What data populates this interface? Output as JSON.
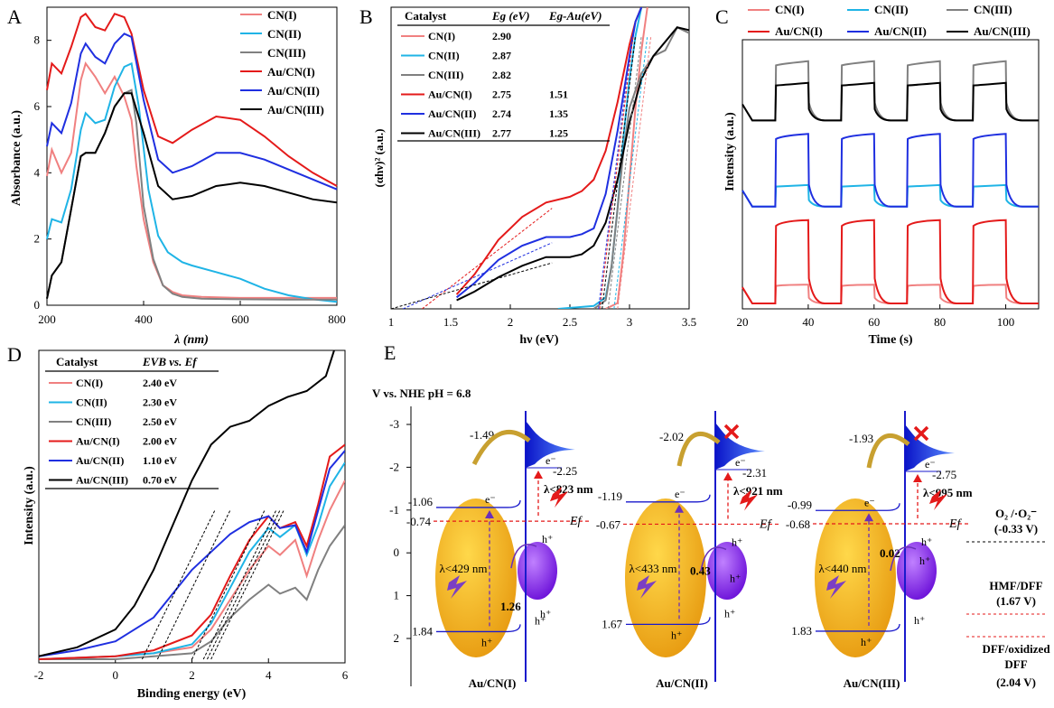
{
  "panel_letters": [
    "A",
    "B",
    "C",
    "D",
    "E"
  ],
  "chart_data": [
    {
      "panel": "A",
      "type": "line",
      "xlabel": "λ (nm)",
      "ylabel": "Absorbance (a.u.)",
      "xlim": [
        200,
        800
      ],
      "ylim": [
        0,
        9
      ],
      "xticks": [
        200,
        400,
        600,
        800
      ],
      "yticks": [
        0,
        2,
        4,
        6,
        8
      ],
      "legend_position": "top-right",
      "series": [
        {
          "name": "CN(I)",
          "color": "#f08080",
          "x": [
            200,
            210,
            230,
            250,
            270,
            280,
            300,
            320,
            340,
            360,
            375,
            385,
            400,
            420,
            440,
            460,
            480,
            520,
            600,
            700,
            800
          ],
          "y": [
            3.9,
            4.7,
            4.0,
            4.6,
            6.8,
            7.3,
            6.9,
            6.4,
            6.9,
            6.3,
            5.6,
            4.2,
            2.6,
            1.3,
            0.6,
            0.4,
            0.3,
            0.25,
            0.22,
            0.22,
            0.22
          ]
        },
        {
          "name": "CN(II)",
          "color": "#1fb4e6",
          "x": [
            200,
            210,
            230,
            250,
            270,
            280,
            300,
            320,
            340,
            360,
            375,
            390,
            410,
            430,
            450,
            480,
            500,
            550,
            600,
            650,
            700,
            750,
            800
          ],
          "y": [
            2.0,
            2.6,
            2.5,
            3.5,
            5.3,
            5.8,
            5.5,
            5.6,
            6.6,
            7.2,
            7.3,
            6.0,
            3.5,
            2.1,
            1.6,
            1.3,
            1.2,
            1.0,
            0.8,
            0.5,
            0.3,
            0.18,
            0.1
          ]
        },
        {
          "name": "CN(III)",
          "color": "#808080",
          "x": [
            200,
            210,
            230,
            250,
            270,
            280,
            300,
            320,
            340,
            360,
            375,
            385,
            400,
            420,
            440,
            460,
            480,
            520,
            600,
            700,
            800
          ],
          "y": [
            0.2,
            0.9,
            1.3,
            2.9,
            4.5,
            4.6,
            4.6,
            5.2,
            6.0,
            6.4,
            6.5,
            5.5,
            3.0,
            1.4,
            0.6,
            0.35,
            0.25,
            0.2,
            0.18,
            0.17,
            0.17
          ]
        },
        {
          "name": "Au/CN(I)",
          "color": "#e41a1a",
          "x": [
            200,
            210,
            230,
            250,
            270,
            280,
            300,
            320,
            340,
            360,
            375,
            400,
            430,
            460,
            500,
            550,
            600,
            650,
            700,
            750,
            800
          ],
          "y": [
            6.5,
            7.3,
            7.0,
            7.8,
            8.7,
            8.8,
            8.4,
            8.3,
            8.8,
            8.7,
            8.2,
            6.5,
            5.1,
            4.9,
            5.3,
            5.7,
            5.6,
            5.1,
            4.5,
            4.0,
            3.6
          ]
        },
        {
          "name": "Au/CN(II)",
          "color": "#1f2fe0",
          "x": [
            200,
            210,
            230,
            250,
            270,
            280,
            300,
            320,
            340,
            360,
            375,
            400,
            430,
            460,
            500,
            550,
            600,
            650,
            700,
            750,
            800
          ],
          "y": [
            4.8,
            5.5,
            5.2,
            6.1,
            7.6,
            7.9,
            7.5,
            7.3,
            7.9,
            8.2,
            8.1,
            6.2,
            4.4,
            4.0,
            4.2,
            4.6,
            4.6,
            4.4,
            4.1,
            3.8,
            3.5
          ]
        },
        {
          "name": "Au/CN(III)",
          "color": "#000000",
          "x": [
            200,
            210,
            230,
            250,
            270,
            280,
            300,
            320,
            340,
            360,
            375,
            400,
            430,
            460,
            500,
            550,
            600,
            650,
            700,
            750,
            800
          ],
          "y": [
            0.2,
            0.9,
            1.3,
            2.9,
            4.5,
            4.6,
            4.6,
            5.2,
            6.0,
            6.4,
            6.4,
            5.2,
            3.6,
            3.2,
            3.3,
            3.6,
            3.7,
            3.6,
            3.4,
            3.2,
            3.1
          ]
        }
      ]
    },
    {
      "panel": "B",
      "type": "line",
      "xlabel": "hν (eV)",
      "ylabel": "(αhν)²  (a.u.)",
      "xlim": [
        1,
        3.5
      ],
      "xticks": [
        1,
        1.5,
        2,
        2.5,
        3,
        3.5
      ],
      "table": {
        "headers": [
          "Catalyst",
          "Eg (eV)",
          "Eg-Au(eV)"
        ],
        "rows": [
          [
            "CN(I)",
            "2.90",
            ""
          ],
          [
            "CN(II)",
            "2.87",
            ""
          ],
          [
            "CN(III)",
            "2.82",
            ""
          ],
          [
            "Au/CN(I)",
            "2.75",
            "1.51"
          ],
          [
            "Au/CN(II)",
            "2.74",
            "1.35"
          ],
          [
            "Au/CN(III)",
            "2.77",
            "1.25"
          ]
        ]
      },
      "series": [
        {
          "name": "CN(I)",
          "color": "#f08080",
          "x": [
            2.8,
            2.9,
            2.95,
            3.0,
            3.05,
            3.1,
            3.15
          ],
          "y": [
            0,
            0.02,
            0.2,
            0.45,
            0.7,
            0.9,
            1.05
          ]
        },
        {
          "name": "CN(II)",
          "color": "#1fb4e6",
          "x": [
            2.4,
            2.7,
            2.8,
            2.85,
            2.9,
            2.95,
            3.0,
            3.05,
            3.1
          ],
          "y": [
            0,
            0.01,
            0.04,
            0.15,
            0.35,
            0.6,
            0.8,
            0.95,
            1.05
          ]
        },
        {
          "name": "CN(III)",
          "color": "#808080",
          "x": [
            2.7,
            2.8,
            2.85,
            2.9,
            2.95,
            3.0,
            3.1,
            3.2,
            3.3,
            3.4,
            3.5
          ],
          "y": [
            0,
            0.03,
            0.15,
            0.35,
            0.55,
            0.7,
            0.82,
            0.88,
            0.9,
            0.98,
            0.96
          ]
        },
        {
          "name": "Au/CN(I)",
          "color": "#e41a1a",
          "x": [
            1.55,
            1.7,
            1.9,
            2.1,
            2.3,
            2.5,
            2.6,
            2.7,
            2.8,
            2.9,
            3.0,
            3.05,
            3.1
          ],
          "y": [
            0.05,
            0.12,
            0.24,
            0.32,
            0.37,
            0.39,
            0.41,
            0.45,
            0.55,
            0.72,
            0.92,
            1.0,
            1.05
          ]
        },
        {
          "name": "Au/CN(II)",
          "color": "#1f2fe0",
          "x": [
            1.55,
            1.7,
            1.9,
            2.1,
            2.3,
            2.5,
            2.6,
            2.7,
            2.8,
            2.9,
            3.0,
            3.05,
            3.1
          ],
          "y": [
            0.04,
            0.09,
            0.17,
            0.22,
            0.25,
            0.25,
            0.26,
            0.28,
            0.4,
            0.62,
            0.88,
            1.0,
            1.05
          ]
        },
        {
          "name": "Au/CN(III)",
          "color": "#000000",
          "x": [
            1.55,
            1.7,
            1.9,
            2.1,
            2.3,
            2.5,
            2.6,
            2.7,
            2.8,
            2.9,
            3.0,
            3.1,
            3.2,
            3.3,
            3.4,
            3.5
          ],
          "y": [
            0.03,
            0.06,
            0.11,
            0.15,
            0.18,
            0.18,
            0.19,
            0.22,
            0.3,
            0.45,
            0.65,
            0.8,
            0.88,
            0.93,
            0.98,
            0.97
          ]
        }
      ]
    },
    {
      "panel": "C",
      "type": "line",
      "xlabel": "Time (s)",
      "ylabel": "Intensity (a.u.)",
      "xlim": [
        20,
        110
      ],
      "xticks": [
        20,
        40,
        60,
        80,
        100
      ],
      "legend_position": "top",
      "on_intervals": [
        [
          30,
          40
        ],
        [
          50,
          60
        ],
        [
          70,
          80
        ],
        [
          90,
          100
        ]
      ],
      "series": [
        {
          "name": "CN(I)",
          "color": "#f08080",
          "base": 0.02,
          "level": 0.09
        },
        {
          "name": "CN(II)",
          "color": "#1fb4e6",
          "base": 0.38,
          "level": 0.46
        },
        {
          "name": "CN(III)",
          "color": "#808080",
          "base": 0.7,
          "level": 0.92
        },
        {
          "name": "Au/CN(I)",
          "color": "#e41a1a",
          "base": 0.02,
          "level": 0.33
        },
        {
          "name": "Au/CN(II)",
          "color": "#1f2fe0",
          "base": 0.38,
          "level": 0.65
        },
        {
          "name": "Au/CN(III)",
          "color": "#000000",
          "base": 0.7,
          "level": 0.84
        }
      ]
    },
    {
      "panel": "D",
      "type": "line",
      "xlabel": "Binding energy (eV)",
      "ylabel": "Intensity (a.u.)",
      "xlim": [
        -2,
        6
      ],
      "xticks": [
        -2,
        0,
        2,
        4,
        6
      ],
      "table": {
        "headers": [
          "Catalyst",
          "EVB vs. Ef"
        ],
        "rows": [
          [
            "CN(I)",
            "2.40 eV"
          ],
          [
            "CN(II)",
            "2.30 eV"
          ],
          [
            "CN(III)",
            "2.50 eV"
          ],
          [
            "Au/CN(I)",
            "2.00 eV"
          ],
          [
            "Au/CN(II)",
            "1.10 eV"
          ],
          [
            "Au/CN(III)",
            "0.70 eV"
          ]
        ]
      },
      "series": [
        {
          "name": "CN(I)",
          "color": "#f08080",
          "x": [
            -2,
            0,
            1,
            2,
            2.5,
            3,
            3.5,
            4,
            4.3,
            4.7,
            5,
            5.3,
            5.6,
            6
          ],
          "y": [
            0,
            0.01,
            0.02,
            0.04,
            0.1,
            0.2,
            0.3,
            0.38,
            0.35,
            0.4,
            0.28,
            0.4,
            0.5,
            0.6
          ]
        },
        {
          "name": "CN(II)",
          "color": "#1fb4e6",
          "x": [
            -2,
            0,
            1,
            2,
            2.5,
            3,
            3.5,
            4,
            4.3,
            4.7,
            5,
            5.3,
            5.6,
            6
          ],
          "y": [
            0,
            0.01,
            0.02,
            0.05,
            0.12,
            0.24,
            0.36,
            0.44,
            0.41,
            0.45,
            0.35,
            0.45,
            0.58,
            0.66
          ]
        },
        {
          "name": "CN(III)",
          "color": "#808080",
          "x": [
            -2,
            0,
            1,
            2,
            2.5,
            3,
            3.5,
            4,
            4.3,
            4.7,
            5,
            5.3,
            5.6,
            6
          ],
          "y": [
            0,
            0,
            0.01,
            0.02,
            0.06,
            0.14,
            0.2,
            0.25,
            0.22,
            0.24,
            0.2,
            0.3,
            0.38,
            0.45
          ]
        },
        {
          "name": "Au/CN(I)",
          "color": "#e41a1a",
          "x": [
            -2,
            0,
            1,
            2,
            2.5,
            3,
            3.5,
            4,
            4.3,
            4.7,
            5,
            5.3,
            5.6,
            6
          ],
          "y": [
            0,
            0.01,
            0.03,
            0.08,
            0.15,
            0.28,
            0.4,
            0.48,
            0.44,
            0.46,
            0.38,
            0.52,
            0.68,
            0.72
          ]
        },
        {
          "name": "Au/CN(II)",
          "color": "#1f2fe0",
          "x": [
            -2,
            -1,
            0,
            1,
            1.5,
            2,
            2.5,
            3,
            3.5,
            4,
            4.3,
            4.7,
            5,
            5.3,
            5.6,
            6
          ],
          "y": [
            0.01,
            0.03,
            0.06,
            0.14,
            0.22,
            0.3,
            0.36,
            0.42,
            0.46,
            0.48,
            0.44,
            0.45,
            0.36,
            0.5,
            0.64,
            0.7
          ]
        },
        {
          "name": "Au/CN(III)",
          "color": "#000000",
          "x": [
            -2,
            -1,
            0,
            0.5,
            1,
            1.5,
            2,
            2.5,
            3,
            3.5,
            4,
            4.5,
            5,
            5.5,
            6
          ],
          "y": [
            0.01,
            0.04,
            0.1,
            0.18,
            0.3,
            0.45,
            0.6,
            0.72,
            0.78,
            0.8,
            0.85,
            0.88,
            0.9,
            0.95,
            1.15
          ]
        }
      ]
    }
  ],
  "panel_e": {
    "axis_title": "V vs. NHE pH = 6.8",
    "yticks": [
      "-3",
      "-2",
      "-1",
      "0",
      "1",
      "2"
    ],
    "columns": [
      {
        "label": "Au/CN(I)",
        "cb": "-1.06",
        "vb": "1.84",
        "ef": "-0.74",
        "au_top": "-2.25",
        "au_mid": "-1.49",
        "au_hole": "1.26",
        "lambda_cn": "λ<429 nm",
        "lambda_au": "λ<823 nm",
        "blocked": false
      },
      {
        "label": "Au/CN(II)",
        "cb": "-1.19",
        "vb": "1.67",
        "ef": "-0.67",
        "au_top": "-2.31",
        "au_mid": "-2.02",
        "au_hole": "0.43",
        "lambda_cn": "λ<433 nm",
        "lambda_au": "λ<921 nm",
        "blocked": true
      },
      {
        "label": "Au/CN(III)",
        "cb": "-0.99",
        "vb": "1.83",
        "ef": "-0.68",
        "au_top": "-2.75",
        "au_mid": "-1.93",
        "au_hole": "0.02",
        "lambda_cn": "λ<440 nm",
        "lambda_au": "λ<995 nm",
        "blocked": true
      }
    ],
    "carrier_labels": {
      "electron": "e⁻",
      "hole": "h⁺",
      "fermi": "Ef"
    },
    "redox": [
      {
        "couple": "O₂ /·O₂⁻",
        "potential": "(-0.33 V)"
      },
      {
        "couple": "HMF/DFF",
        "potential": "(1.67 V)"
      },
      {
        "couple": "DFF/oxidized DFF",
        "potential": "(2.04 V)"
      }
    ],
    "colors": {
      "cn": "#f0a500",
      "au": "#8a2be2",
      "band": "#1a1acc",
      "fermi": "#e41a1a",
      "cross": "#e41a1a"
    }
  }
}
